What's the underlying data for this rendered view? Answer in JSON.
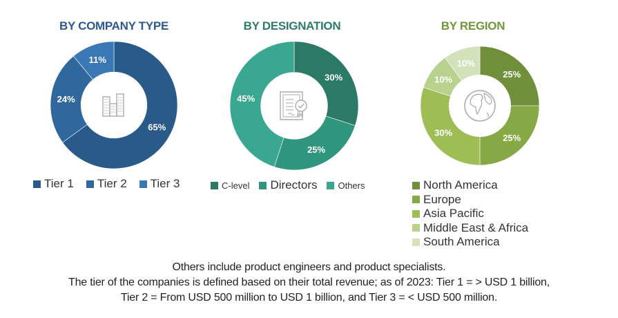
{
  "chart_data": [
    {
      "type": "pie",
      "title": "BY COMPANY TYPE",
      "title_color": "#2c5a8c",
      "center_icon": "buildings-icon",
      "categories": [
        "Tier 1",
        "Tier 2",
        "Tier 3"
      ],
      "values": [
        65,
        24,
        11
      ],
      "labels": [
        "65%",
        "24%",
        "11%"
      ],
      "colors": [
        "#2a5a8a",
        "#30689e",
        "#3a78b5"
      ],
      "legend": "bottom"
    },
    {
      "type": "pie",
      "title": "BY DESIGNATION",
      "title_color": "#2d7b6a",
      "center_icon": "certificate-icon",
      "categories": [
        "C-level",
        "Directors",
        "Others"
      ],
      "values": [
        30,
        25,
        45
      ],
      "labels": [
        "30%",
        "25%",
        "45%"
      ],
      "colors": [
        "#2a7a66",
        "#2f957c",
        "#3aa891"
      ],
      "legend": "bottom"
    },
    {
      "type": "pie",
      "title": "BY REGION",
      "title_color": "#6e963a",
      "center_icon": "globe-icon",
      "categories": [
        "North America",
        "Europe",
        "Asia Pacific",
        "Middle East & Africa",
        "South America"
      ],
      "values": [
        25,
        25,
        30,
        10,
        10
      ],
      "labels": [
        "25%",
        "25%",
        "30%",
        "10%",
        "10%"
      ],
      "colors": [
        "#6f8f3a",
        "#86a845",
        "#9ebe55",
        "#b8d18c",
        "#d3e2bb"
      ],
      "legend": "bottom"
    }
  ],
  "footnote": {
    "line1": "Others include product engineers and product specialists.",
    "line2": "The tier of the companies is defined based on their total revenue; as of 2023: Tier 1 = > USD 1 billion,",
    "line3": "Tier 2 = From USD 500 million to USD 1 billion, and Tier 3 = < USD 500 million."
  }
}
